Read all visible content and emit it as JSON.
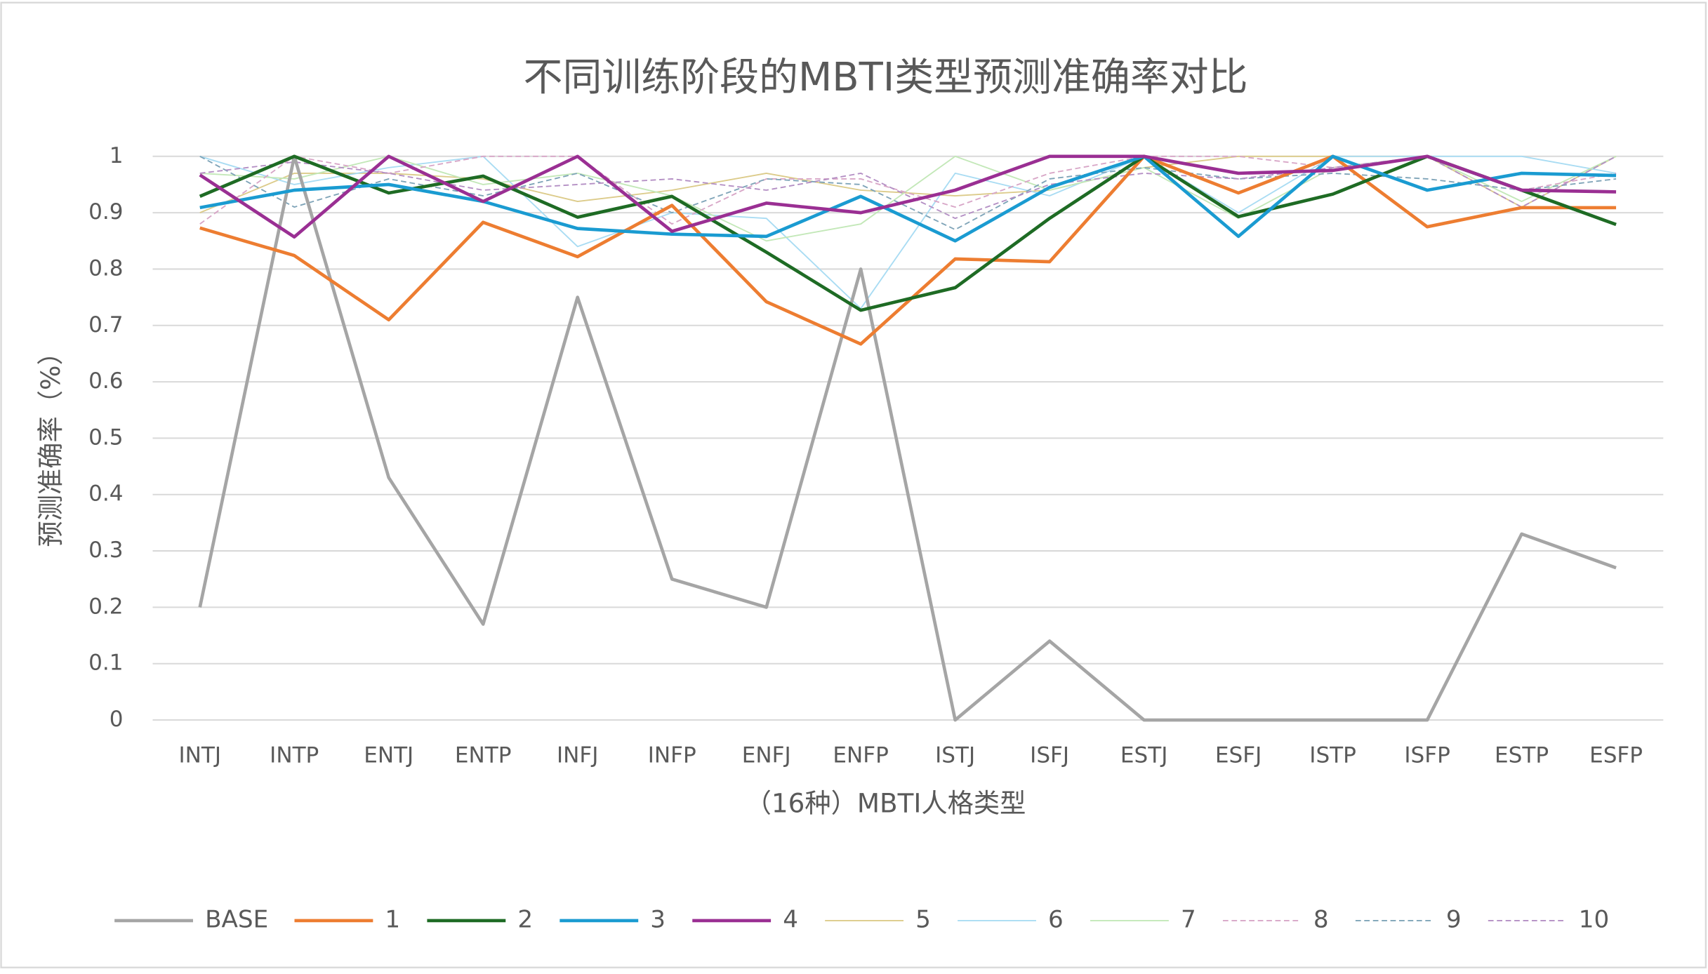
{
  "chart_data": {
    "type": "line",
    "title": "不同训练阶段的MBTI类型预测准确率对比",
    "x_label": "（16种）MBTI人格类型",
    "y_label": "预测准确率（%）",
    "categories": [
      "INTJ",
      "INTP",
      "ENTJ",
      "ENTP",
      "INFJ",
      "INFP",
      "ENFJ",
      "ENFP",
      "ISTJ",
      "ISFJ",
      "ESTJ",
      "ESFJ",
      "ISTP",
      "ISFP",
      "ESTP",
      "ESFP"
    ],
    "ylim": [
      0,
      1
    ],
    "yticks": [
      0,
      0.1,
      0.2,
      0.3,
      0.4,
      0.5,
      0.6,
      0.7,
      0.8,
      0.9,
      1
    ],
    "grid": true,
    "legend": "bottom",
    "series": [
      {
        "name": "BASE",
        "color": "#a5a5a5",
        "width": 3,
        "dash": false,
        "values": [
          0.2,
          1.0,
          0.43,
          0.17,
          0.75,
          0.25,
          0.2,
          0.8,
          0,
          0.14,
          0,
          0,
          0,
          0,
          0.33,
          0.27
        ]
      },
      {
        "name": "1",
        "color": "#ed7d31",
        "width": 3,
        "dash": false,
        "values": [
          0.873,
          0.824,
          0.71,
          0.883,
          0.822,
          0.913,
          0.742,
          0.667,
          0.818,
          0.813,
          1.0,
          0.935,
          1.0,
          0.875,
          0.909,
          0.909
        ]
      },
      {
        "name": "2",
        "color": "#1e6b24",
        "width": 3,
        "dash": false,
        "values": [
          0.929,
          1.0,
          0.935,
          0.965,
          0.892,
          0.929,
          0.83,
          0.727,
          0.767,
          0.89,
          1.0,
          0.893,
          0.933,
          1.0,
          0.94,
          0.879
        ]
      },
      {
        "name": "3",
        "color": "#1a9bd1",
        "width": 3,
        "dash": false,
        "values": [
          0.909,
          0.94,
          0.95,
          0.92,
          0.872,
          0.862,
          0.858,
          0.929,
          0.85,
          0.945,
          1.0,
          0.858,
          1.0,
          0.94,
          0.97,
          0.966
        ]
      },
      {
        "name": "4",
        "color": "#9a2f93",
        "width": 3,
        "dash": false,
        "values": [
          0.967,
          0.857,
          1.0,
          0.92,
          1.0,
          0.867,
          0.917,
          0.9,
          0.94,
          1.0,
          1.0,
          0.97,
          0.975,
          1.0,
          0.94,
          0.937
        ]
      },
      {
        "name": "5",
        "color": "#dccb8a",
        "width": 1.2,
        "dash": false,
        "values": [
          0.9,
          0.97,
          0.97,
          0.96,
          0.92,
          0.94,
          0.97,
          0.94,
          0.93,
          0.94,
          0.98,
          1.0,
          1.0,
          1.0,
          0.91,
          1.0
        ]
      },
      {
        "name": "6",
        "color": "#a9dcf3",
        "width": 1.2,
        "dash": false,
        "values": [
          1.0,
          0.95,
          0.98,
          1.0,
          0.84,
          0.9,
          0.89,
          0.73,
          0.97,
          0.93,
          1.0,
          0.9,
          1.0,
          1.0,
          1.0,
          0.97
        ]
      },
      {
        "name": "7",
        "color": "#c3e8b8",
        "width": 1.2,
        "dash": false,
        "values": [
          0.97,
          0.96,
          1.0,
          0.95,
          0.97,
          0.93,
          0.85,
          0.88,
          1.0,
          0.94,
          0.98,
          0.89,
          0.98,
          1.0,
          0.92,
          1.0
        ]
      },
      {
        "name": "8",
        "color": "#d8a6c7",
        "width": 1.2,
        "dash": true,
        "values": [
          0.88,
          1.0,
          0.97,
          1.0,
          1.0,
          0.88,
          0.96,
          0.96,
          0.91,
          0.97,
          1.0,
          1.0,
          0.98,
          1.0,
          0.94,
          0.97
        ]
      },
      {
        "name": "9",
        "color": "#7fa4b8",
        "width": 1.2,
        "dash": true,
        "values": [
          1.0,
          0.91,
          0.96,
          0.93,
          0.97,
          0.9,
          0.96,
          0.95,
          0.87,
          0.96,
          0.98,
          0.96,
          0.97,
          0.96,
          0.94,
          0.96
        ]
      },
      {
        "name": "10",
        "color": "#b48fc4",
        "width": 1.2,
        "dash": true,
        "values": [
          0.97,
          0.99,
          0.97,
          0.94,
          0.95,
          0.96,
          0.94,
          0.97,
          0.89,
          0.95,
          0.97,
          0.96,
          0.98,
          1.0,
          0.91,
          1.0
        ]
      }
    ]
  }
}
